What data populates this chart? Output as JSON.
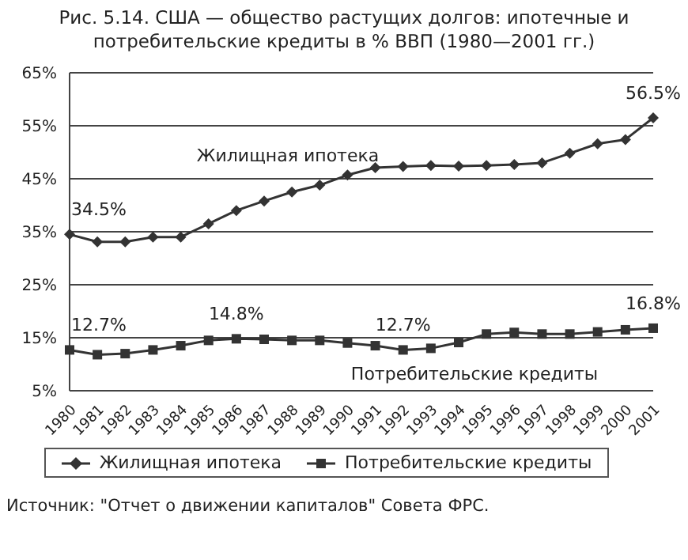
{
  "chart_data": {
    "type": "line",
    "title": "Рис. 5.14. США — общество растущих долгов: ипотечные и потребительские кредиты в % ВВП (1980—2001 гг.)",
    "categories": [
      "1980",
      "1981",
      "1982",
      "1983",
      "1984",
      "1985",
      "1986",
      "1987",
      "1988",
      "1989",
      "1990",
      "1991",
      "1992",
      "1993",
      "1994",
      "1995",
      "1996",
      "1997",
      "1998",
      "1999",
      "2000",
      "2001"
    ],
    "series": [
      {
        "name": "Жилищная ипотека",
        "color": "#333333",
        "marker": "diamond",
        "values": [
          34.5,
          33.1,
          33.1,
          34.0,
          34.0,
          36.5,
          39.0,
          40.8,
          42.5,
          43.8,
          45.7,
          47.1,
          47.3,
          47.5,
          47.4,
          47.5,
          47.7,
          48.0,
          49.8,
          51.6,
          52.4,
          56.5
        ],
        "value_labels": [
          "34.5%",
          null,
          null,
          null,
          null,
          null,
          null,
          null,
          null,
          null,
          null,
          null,
          null,
          null,
          null,
          null,
          null,
          null,
          null,
          null,
          null,
          "56.5%"
        ]
      },
      {
        "name": "Потребительские кредиты",
        "color": "#333333",
        "marker": "square",
        "values": [
          12.7,
          11.8,
          12.0,
          12.7,
          13.5,
          14.5,
          14.8,
          14.7,
          14.5,
          14.5,
          14.0,
          13.5,
          12.7,
          13.0,
          14.1,
          15.7,
          16.0,
          15.7,
          15.7,
          16.1,
          16.5,
          16.8
        ],
        "value_labels": [
          "12.7%",
          null,
          null,
          null,
          null,
          null,
          "14.8%",
          null,
          null,
          null,
          null,
          null,
          "12.7%",
          null,
          null,
          null,
          null,
          null,
          null,
          null,
          null,
          "16.8%"
        ]
      }
    ],
    "ylim": [
      5,
      65
    ],
    "yticks": [
      {
        "value": 5,
        "label": "5%"
      },
      {
        "value": 15,
        "label": "15%"
      },
      {
        "value": 25,
        "label": "25%"
      },
      {
        "value": 35,
        "label": "35%"
      },
      {
        "value": 45,
        "label": "45%"
      },
      {
        "value": 55,
        "label": "55%"
      },
      {
        "value": 65,
        "label": "65%"
      }
    ],
    "grid": "y",
    "legend": "bottom",
    "line_style": "solid",
    "annotations": [
      "Жилищная ипотека",
      "Потребительские кредиты",
      "Источник: \"Отчет о движении капиталов\" Совета ФРС."
    ]
  }
}
